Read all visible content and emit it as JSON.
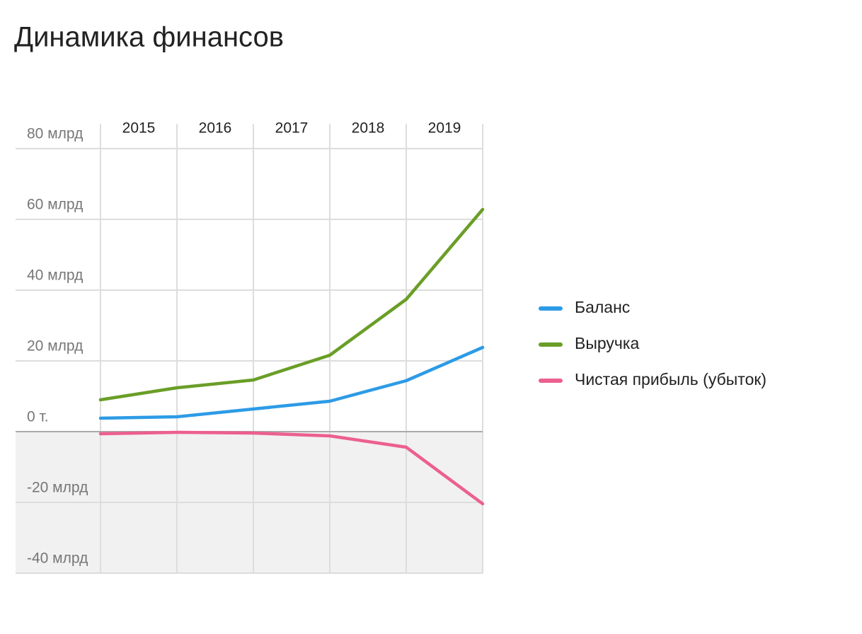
{
  "chart_data": {
    "type": "line",
    "title": "Динамика финансов",
    "categories": [
      null,
      "2015",
      "2016",
      "2017",
      "2018",
      "2019"
    ],
    "series": [
      {
        "name": "Баланс",
        "color": "#2d9be6",
        "values": [
          3.8,
          4.2,
          6.4,
          8.6,
          14.4,
          23.8
        ]
      },
      {
        "name": "Выручка",
        "color": "#6a9e27",
        "values": [
          9,
          12.4,
          14.6,
          21.6,
          37.4,
          62.8
        ]
      },
      {
        "name": "Чистая прибыль (убыток)",
        "color": "#ec5f8f",
        "values": [
          -0.6,
          -0.2,
          -0.4,
          -1.2,
          -4.4,
          -20.4
        ]
      }
    ],
    "ylim": [
      -40,
      80
    ],
    "yticks": [
      {
        "value": -40,
        "label": "-40 млрд"
      },
      {
        "value": -20,
        "label": "-20 млрд"
      },
      {
        "value": 0,
        "label": "0 т."
      },
      {
        "value": 20,
        "label": "20 млрд"
      },
      {
        "value": 40,
        "label": "40 млрд"
      },
      {
        "value": 60,
        "label": "60 млрд"
      },
      {
        "value": 80,
        "label": "80 млрд"
      }
    ],
    "grid": true,
    "legend": "right"
  }
}
